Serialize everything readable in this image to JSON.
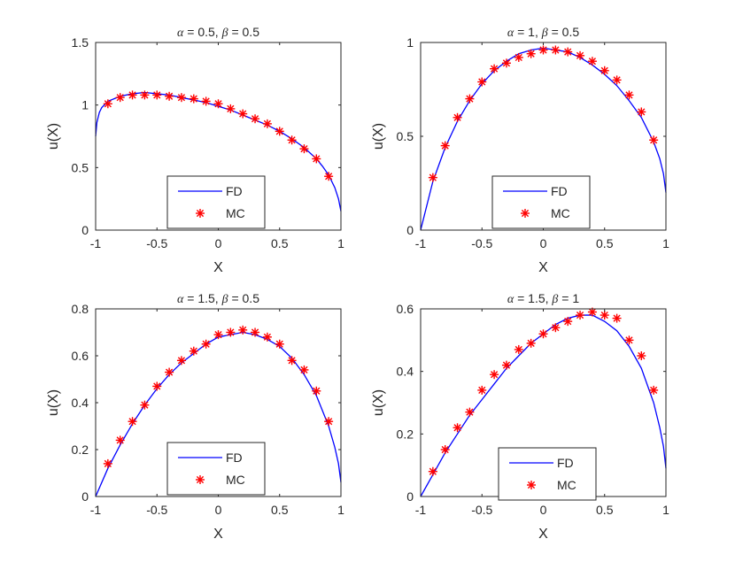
{
  "chart_data": [
    {
      "type": "line",
      "title": "α = 0.5, β = 0.5",
      "title_parts": [
        "α",
        " = 0.5, ",
        "β",
        " = 0.5"
      ],
      "xlabel": "X",
      "ylabel": "u(X)",
      "xlim": [
        -1,
        1
      ],
      "ylim": [
        0,
        1.5
      ],
      "xticks": [
        -1,
        -0.5,
        0,
        0.5,
        1
      ],
      "xtick_labels": [
        "-1",
        "-0.5",
        "0",
        "0.5",
        "1"
      ],
      "yticks": [
        0,
        0.5,
        1,
        1.5
      ],
      "ytick_labels": [
        "0",
        "0.5",
        "1",
        "1.5"
      ],
      "legend": {
        "placement": "bottom-center",
        "entries": [
          "FD",
          "MC"
        ]
      },
      "series": [
        {
          "name": "FD",
          "style": "line",
          "color": "#0000FF",
          "x": [
            -1,
            -0.99,
            -0.97,
            -0.95,
            -0.9,
            -0.85,
            -0.8,
            -0.7,
            -0.6,
            -0.5,
            -0.4,
            -0.3,
            -0.2,
            -0.1,
            0,
            0.1,
            0.2,
            0.3,
            0.4,
            0.5,
            0.6,
            0.7,
            0.8,
            0.85,
            0.9,
            0.95,
            0.98,
            1
          ],
          "y": [
            0.75,
            0.86,
            0.94,
            0.98,
            1.03,
            1.05,
            1.07,
            1.09,
            1.1,
            1.09,
            1.08,
            1.06,
            1.04,
            1.02,
            0.99,
            0.96,
            0.92,
            0.88,
            0.84,
            0.79,
            0.73,
            0.66,
            0.57,
            0.51,
            0.44,
            0.34,
            0.25,
            0.15
          ]
        },
        {
          "name": "MC",
          "style": "markers",
          "color": "#FF0000",
          "x": [
            -0.9,
            -0.8,
            -0.7,
            -0.6,
            -0.5,
            -0.4,
            -0.3,
            -0.2,
            -0.1,
            0,
            0.1,
            0.2,
            0.3,
            0.4,
            0.5,
            0.6,
            0.7,
            0.8,
            0.9
          ],
          "y": [
            1.01,
            1.06,
            1.08,
            1.08,
            1.08,
            1.07,
            1.06,
            1.05,
            1.03,
            1.01,
            0.97,
            0.93,
            0.89,
            0.85,
            0.79,
            0.72,
            0.65,
            0.57,
            0.43
          ]
        }
      ]
    },
    {
      "type": "line",
      "title": "α = 1, β = 0.5",
      "title_parts": [
        "α",
        " = 1, ",
        "β",
        " = 0.5"
      ],
      "xlabel": "X",
      "ylabel": "u(X)",
      "xlim": [
        -1,
        1
      ],
      "ylim": [
        0,
        1
      ],
      "xticks": [
        -1,
        -0.5,
        0,
        0.5,
        1
      ],
      "xtick_labels": [
        "-1",
        "-0.5",
        "0",
        "0.5",
        "1"
      ],
      "yticks": [
        0,
        0.5,
        1
      ],
      "ytick_labels": [
        "0",
        "0.5",
        "1"
      ],
      "legend": {
        "placement": "bottom-center",
        "entries": [
          "FD",
          "MC"
        ]
      },
      "series": [
        {
          "name": "FD",
          "style": "line",
          "color": "#0000FF",
          "x": [
            -1,
            -0.9,
            -0.8,
            -0.7,
            -0.6,
            -0.5,
            -0.4,
            -0.3,
            -0.2,
            -0.1,
            0,
            0.1,
            0.2,
            0.3,
            0.4,
            0.5,
            0.6,
            0.7,
            0.8,
            0.9,
            0.95,
            0.98,
            1
          ],
          "y": [
            0.0,
            0.26,
            0.44,
            0.58,
            0.69,
            0.78,
            0.85,
            0.9,
            0.94,
            0.96,
            0.97,
            0.96,
            0.95,
            0.92,
            0.88,
            0.83,
            0.77,
            0.69,
            0.6,
            0.47,
            0.38,
            0.3,
            0.2
          ]
        },
        {
          "name": "MC",
          "style": "markers",
          "color": "#FF0000",
          "x": [
            -0.9,
            -0.8,
            -0.7,
            -0.6,
            -0.5,
            -0.4,
            -0.3,
            -0.2,
            -0.1,
            0,
            0.1,
            0.2,
            0.3,
            0.4,
            0.5,
            0.6,
            0.7,
            0.8,
            0.9
          ],
          "y": [
            0.28,
            0.45,
            0.6,
            0.7,
            0.79,
            0.86,
            0.89,
            0.92,
            0.94,
            0.96,
            0.96,
            0.95,
            0.93,
            0.9,
            0.85,
            0.8,
            0.72,
            0.63,
            0.48
          ]
        }
      ]
    },
    {
      "type": "line",
      "title": "α = 1.5, β = 0.5",
      "title_parts": [
        "α",
        " = 1.5, ",
        "β",
        " = 0.5"
      ],
      "xlabel": "X",
      "ylabel": "u(X)",
      "xlim": [
        -1,
        1
      ],
      "ylim": [
        0,
        0.8
      ],
      "xticks": [
        -1,
        -0.5,
        0,
        0.5,
        1
      ],
      "xtick_labels": [
        "-1",
        "-0.5",
        "0",
        "0.5",
        "1"
      ],
      "yticks": [
        0,
        0.2,
        0.4,
        0.6,
        0.8
      ],
      "ytick_labels": [
        "0",
        "0.2",
        "0.4",
        "0.6",
        "0.8"
      ],
      "legend": {
        "placement": "bottom-center",
        "entries": [
          "FD",
          "MC"
        ]
      },
      "series": [
        {
          "name": "FD",
          "style": "line",
          "color": "#0000FF",
          "x": [
            -1,
            -0.9,
            -0.8,
            -0.7,
            -0.6,
            -0.5,
            -0.4,
            -0.3,
            -0.2,
            -0.1,
            0,
            0.1,
            0.2,
            0.3,
            0.4,
            0.5,
            0.6,
            0.7,
            0.8,
            0.9,
            0.95,
            0.98,
            1
          ],
          "y": [
            0.0,
            0.12,
            0.22,
            0.31,
            0.39,
            0.46,
            0.52,
            0.57,
            0.61,
            0.65,
            0.68,
            0.69,
            0.7,
            0.69,
            0.67,
            0.64,
            0.59,
            0.52,
            0.43,
            0.3,
            0.21,
            0.14,
            0.06
          ]
        },
        {
          "name": "MC",
          "style": "markers",
          "color": "#FF0000",
          "x": [
            -0.9,
            -0.8,
            -0.7,
            -0.6,
            -0.5,
            -0.4,
            -0.3,
            -0.2,
            -0.1,
            0,
            0.1,
            0.2,
            0.3,
            0.4,
            0.5,
            0.6,
            0.7,
            0.8,
            0.9
          ],
          "y": [
            0.14,
            0.24,
            0.32,
            0.39,
            0.47,
            0.53,
            0.58,
            0.62,
            0.65,
            0.69,
            0.7,
            0.71,
            0.7,
            0.68,
            0.65,
            0.58,
            0.54,
            0.45,
            0.32
          ]
        }
      ]
    },
    {
      "type": "line",
      "title": "α = 1.5, β = 1",
      "title_parts": [
        "α",
        " = 1.5, ",
        "β",
        " = 1"
      ],
      "xlabel": "X",
      "ylabel": "u(X)",
      "xlim": [
        -1,
        1
      ],
      "ylim": [
        0,
        0.6
      ],
      "xticks": [
        -1,
        -0.5,
        0,
        0.5,
        1
      ],
      "xtick_labels": [
        "-1",
        "-0.5",
        "0",
        "0.5",
        "1"
      ],
      "yticks": [
        0,
        0.2,
        0.4,
        0.6
      ],
      "ytick_labels": [
        "0",
        "0.2",
        "0.4",
        "0.6"
      ],
      "legend": {
        "placement": "bottom-center",
        "entries": [
          "FD",
          "MC"
        ]
      },
      "series": [
        {
          "name": "FD",
          "style": "line",
          "color": "#0000FF",
          "x": [
            -1,
            -0.9,
            -0.8,
            -0.7,
            -0.6,
            -0.5,
            -0.4,
            -0.3,
            -0.2,
            -0.1,
            0,
            0.1,
            0.2,
            0.3,
            0.4,
            0.5,
            0.6,
            0.7,
            0.8,
            0.9,
            0.95,
            0.98,
            1
          ],
          "y": [
            0.0,
            0.07,
            0.14,
            0.2,
            0.26,
            0.31,
            0.36,
            0.41,
            0.45,
            0.49,
            0.52,
            0.55,
            0.57,
            0.58,
            0.58,
            0.56,
            0.53,
            0.48,
            0.41,
            0.3,
            0.22,
            0.16,
            0.09
          ]
        },
        {
          "name": "MC",
          "style": "markers",
          "color": "#FF0000",
          "x": [
            -0.9,
            -0.8,
            -0.7,
            -0.6,
            -0.5,
            -0.4,
            -0.3,
            -0.2,
            -0.1,
            0,
            0.1,
            0.2,
            0.3,
            0.4,
            0.5,
            0.6,
            0.7,
            0.8,
            0.9
          ],
          "y": [
            0.08,
            0.15,
            0.22,
            0.27,
            0.34,
            0.39,
            0.42,
            0.47,
            0.49,
            0.52,
            0.54,
            0.56,
            0.58,
            0.59,
            0.58,
            0.57,
            0.5,
            0.45,
            0.34
          ]
        }
      ]
    }
  ]
}
